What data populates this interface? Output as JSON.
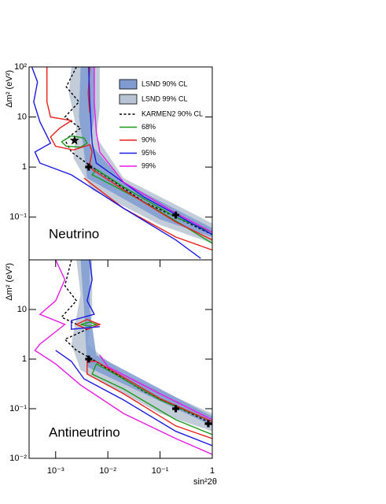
{
  "chart_data": [
    {
      "type": "contour",
      "text": "Neutrino",
      "ylabel": "Δm² (eV²)",
      "log_x": true,
      "log_y": true,
      "legend": "upper right",
      "xlim": [
        0.00031,
        1
      ],
      "ylim": [
        0.014,
        100
      ],
      "yticks": [
        {
          "value": 0.1,
          "label": "10⁻¹"
        },
        1,
        10,
        {
          "value": 100,
          "label": "10²"
        }
      ],
      "series": [
        {
          "name": "LSND 90% CL",
          "color": "#7f9bd0",
          "fill": true,
          "x": [
            0.003,
            0.0055,
            0.0055,
            0.0045,
            0.02,
            1,
            1,
            0.1,
            0.004,
            0.0035,
            0.0028
          ],
          "values": [
            100,
            100,
            10,
            3,
            0.5,
            0.06,
            0.04,
            0.09,
            0.6,
            2,
            10
          ]
        },
        {
          "name": "LSND 99% CL",
          "color": "#b8c4d4",
          "fill": true,
          "x": [
            0.002,
            0.007,
            0.007,
            0.006,
            0.02,
            1,
            1,
            0.1,
            0.005,
            0.0022,
            0.0025,
            0.0018
          ],
          "values": [
            100,
            100,
            15,
            4,
            0.6,
            0.075,
            0.03,
            0.07,
            0.35,
            1.5,
            6,
            30
          ]
        },
        {
          "name": "KARMEN2 90% CL",
          "color": "#000000",
          "dash": true,
          "x": [
            0.0025,
            0.0016,
            0.0028,
            0.0015,
            0.003,
            0.0015,
            0.002,
            0.005,
            0.05,
            1
          ],
          "values": [
            100,
            40,
            20,
            10,
            6,
            3.5,
            2,
            1,
            0.2,
            0.045
          ]
        },
        {
          "name": "68%",
          "color": "#1a9a1a",
          "x": [
            0.0013,
            0.002,
            0.0035,
            0.004,
            0.003,
            0.0016,
            0.0013,
            null,
            1,
            0.2,
            0.02,
            0.006,
            0.005,
            0.008,
            0.05,
            0.3,
            1
          ],
          "values": [
            3.2,
            4.2,
            3.8,
            3,
            2.5,
            2.6,
            3.2,
            null,
            0.05,
            0.1,
            0.4,
            0.9,
            0.7,
            0.55,
            0.2,
            0.065,
            0.03
          ]
        },
        {
          "name": "90%",
          "color": "#e8201a",
          "x": [
            0.00068,
            0.00068,
            0.0008,
            0.002,
            0.0012,
            0.0008,
            0.001,
            0.0022,
            0.0045,
            0.005,
            0.0045,
            0.005,
            0.02,
            0.2,
            1,
            null,
            0.0045,
            0.0042,
            0.0045,
            null,
            1,
            0.2,
            0.02,
            0.005,
            0.0035
          ],
          "values": [
            100,
            20,
            10,
            8.5,
            6,
            4,
            2.6,
            2.2,
            2.8,
            2,
            1.2,
            0.9,
            0.35,
            0.08,
            0.035,
            null,
            100,
            30,
            12,
            null,
            0.022,
            0.04,
            0.15,
            0.45,
            0.6
          ]
        },
        {
          "name": "95%",
          "color": "#1a1ae0",
          "x": [
            0.00035,
            0.00045,
            0.00038,
            0.0005,
            0.0008,
            0.0004,
            0.0005,
            0.002,
            0.02,
            0.2,
            0.6,
            null,
            0.0043,
            0.0045,
            0.005,
            0.006,
            0.05,
            1
          ],
          "values": [
            100,
            50,
            20,
            8,
            3,
            2,
            1.2,
            0.7,
            0.15,
            0.035,
            0.015,
            null,
            100,
            20,
            3,
            1.2,
            0.25,
            0.045
          ]
        },
        {
          "name": "99%",
          "color": "#e81ae8",
          "x": [
            0.0055,
            0.0055,
            0.006,
            0.007,
            0.02,
            0.2,
            1
          ],
          "values": [
            100,
            20,
            5,
            2,
            0.5,
            0.12,
            0.05
          ]
        },
        {
          "color": "#000000",
          "marker": "star",
          "x": [
            0.0023
          ],
          "values": [
            3.4
          ]
        },
        {
          "color": "#000000",
          "marker": "cross",
          "x": [
            0.0043,
            0.2
          ],
          "values": [
            1,
            0.11
          ]
        }
      ]
    },
    {
      "type": "contour",
      "text": "Antineutrino",
      "ylabel": "Δm² (eV²)",
      "xlabel": "sin²2θ",
      "log_x": true,
      "log_y": true,
      "xlim": [
        0.00031,
        1
      ],
      "ylim": [
        0.01,
        100
      ],
      "xticks": [
        {
          "value": 0.001,
          "label": "10⁻³"
        },
        {
          "value": 0.01,
          "label": "10⁻²"
        },
        {
          "value": 0.1,
          "label": "10⁻¹"
        },
        1
      ],
      "yticks": [
        {
          "value": 0.01,
          "label": "10⁻²"
        },
        {
          "value": 0.1,
          "label": "10⁻¹"
        },
        1,
        10
      ],
      "series": [
        {
          "color": "#7f9bd0",
          "fill": true,
          "x": [
            0.003,
            0.0045,
            0.0045,
            0.006,
            1,
            1,
            0.004,
            0.0035
          ],
          "values": [
            100,
            100,
            10,
            1.2,
            0.07,
            0.045,
            0.7,
            10
          ]
        },
        {
          "color": "#b8c4d4",
          "fill": true,
          "x": [
            0.0025,
            0.005,
            0.005,
            0.004,
            0.02,
            1,
            1,
            0.1,
            0.003,
            0.002,
            0.003
          ],
          "values": [
            100,
            100,
            8,
            2,
            0.5,
            0.08,
            0.035,
            0.08,
            0.6,
            2,
            20
          ]
        },
        {
          "color": "#000000",
          "dash": true,
          "x": [
            0.002,
            0.0015,
            0.0025,
            0.0013,
            0.004,
            0.0015,
            0.0025,
            0.005,
            0.05,
            1
          ],
          "values": [
            100,
            30,
            15,
            7,
            4,
            2.5,
            1.5,
            1,
            0.22,
            0.05
          ]
        },
        {
          "color": "#1a9a1a",
          "x": [
            0.003,
            0.0045,
            0.006,
            0.0045,
            0.003,
            null,
            1,
            0.1,
            0.01,
            0.006,
            0.005,
            0.02,
            0.2,
            1
          ],
          "values": [
            5,
            5.6,
            5,
            4.6,
            5,
            null,
            0.055,
            0.15,
            0.6,
            0.8,
            0.5,
            0.25,
            0.06,
            0.03
          ]
        },
        {
          "color": "#e8201a",
          "x": [
            0.0025,
            0.004,
            0.007,
            0.004,
            0.0025,
            null,
            1,
            0.1,
            0.006,
            0.004,
            0.004,
            0.02,
            0.2,
            1
          ],
          "values": [
            5,
            6.3,
            5,
            4,
            5,
            null,
            0.055,
            0.16,
            0.9,
            0.9,
            0.5,
            0.2,
            0.045,
            0.025
          ]
        },
        {
          "color": "#1a1ae0",
          "x": [
            0.0045,
            0.005,
            0.004,
            0.0055,
            0.002,
            0.002,
            0.007,
            null,
            0.001,
            0.002,
            0.0035,
            0.02,
            0.2,
            1
          ],
          "values": [
            100,
            40,
            15,
            8,
            6,
            4,
            4.5,
            null,
            1.5,
            0.9,
            0.4,
            0.15,
            0.035,
            0.018
          ]
        },
        {
          "color": "#e81ae8",
          "x": [
            0.001,
            0.0015,
            0.001,
            0.0005,
            0.0015,
            0.0005,
            0.0004,
            0.001,
            0.003,
            0.02,
            0.2,
            1,
            null,
            1,
            0.1,
            0.01,
            0.007
          ],
          "values": [
            100,
            40,
            15,
            8,
            5,
            2,
            1.5,
            0.8,
            0.3,
            0.08,
            0.025,
            0.012,
            null,
            0.06,
            0.2,
            0.7,
            1.2
          ]
        },
        {
          "color": "#000000",
          "marker": "cross",
          "x": [
            0.0043,
            0.2,
            0.84
          ],
          "values": [
            1,
            0.1,
            0.05
          ]
        }
      ]
    }
  ]
}
